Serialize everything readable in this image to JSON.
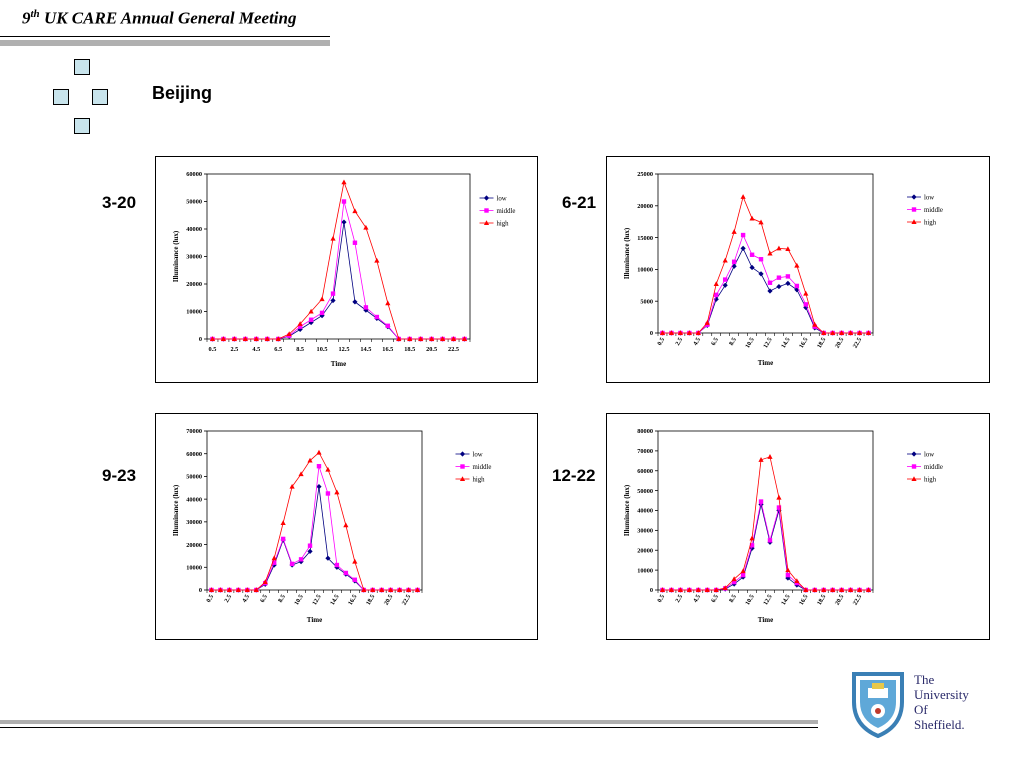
{
  "header": {
    "number": "9",
    "superscript": "th",
    "title": " UK CARE Annual General Meeting"
  },
  "page": {
    "title": "Beijing"
  },
  "logo": {
    "lines": [
      "The",
      "University",
      "Of",
      "Sheffield."
    ]
  },
  "colors": {
    "low": "#000080",
    "middle": "#ff00ff",
    "high": "#ff0000",
    "square_fill": "#c8e4ec"
  },
  "chart_data": [
    {
      "date": "3-20",
      "type": "line",
      "xlabel": "Time",
      "ylabel": "Illuminance (lux)",
      "ylim": [
        0,
        60000
      ],
      "yticks": [
        0,
        10000,
        20000,
        30000,
        40000,
        50000,
        60000
      ],
      "tick_labels": [
        "0.5",
        "2.5",
        "4.5",
        "6.5",
        "8.5",
        "10.5",
        "12.5",
        "14.5",
        "16.5",
        "18.5",
        "20.5",
        "22.5"
      ],
      "tick_rotated": false,
      "legend_position": "right",
      "x": [
        0.5,
        1.5,
        2.5,
        3.5,
        4.5,
        5.5,
        6.5,
        7.5,
        8.5,
        9.5,
        10.5,
        11.5,
        12.5,
        13.5,
        14.5,
        15.5,
        16.5,
        17.5,
        18.5,
        19.5,
        20.5,
        21.5,
        22.5,
        23.5
      ],
      "series": [
        {
          "name": "low",
          "values": [
            0,
            0,
            0,
            0,
            0,
            0,
            0,
            1000,
            3500,
            6000,
            8500,
            14000,
            42500,
            13500,
            10500,
            7500,
            4500,
            0,
            0,
            0,
            0,
            0,
            0,
            0
          ]
        },
        {
          "name": "middle",
          "values": [
            0,
            0,
            0,
            0,
            0,
            0,
            0,
            1200,
            4500,
            7000,
            9500,
            16500,
            50000,
            35000,
            11500,
            8000,
            4800,
            0,
            0,
            0,
            0,
            0,
            0,
            0
          ]
        },
        {
          "name": "high",
          "values": [
            0,
            0,
            0,
            0,
            0,
            0,
            0,
            1800,
            5500,
            10000,
            14500,
            36500,
            57000,
            46500,
            40500,
            28500,
            13000,
            0,
            0,
            0,
            0,
            0,
            0,
            0
          ]
        }
      ]
    },
    {
      "date": "6-21",
      "type": "line",
      "xlabel": "Time",
      "ylabel": "Illuminance (lux)",
      "ylim": [
        0,
        25000
      ],
      "yticks": [
        0,
        5000,
        10000,
        15000,
        20000,
        25000
      ],
      "tick_labels": [
        "0.5",
        "2.5",
        "4.5",
        "6.5",
        "8.5",
        "10.5",
        "12.5",
        "14.5",
        "16.5",
        "18.5",
        "20.5",
        "22.5"
      ],
      "tick_rotated": true,
      "legend_position": "right",
      "x": [
        0.5,
        1.5,
        2.5,
        3.5,
        4.5,
        5.5,
        6.5,
        7.5,
        8.5,
        9.5,
        10.5,
        11.5,
        12.5,
        13.5,
        14.5,
        15.5,
        16.5,
        17.5,
        18.5,
        19.5,
        20.5,
        21.5,
        22.5,
        23.5
      ],
      "series": [
        {
          "name": "low",
          "values": [
            0,
            0,
            0,
            0,
            0,
            1200,
            5300,
            7500,
            10500,
            13300,
            10300,
            9300,
            6600,
            7300,
            7800,
            6800,
            4000,
            800,
            0,
            0,
            0,
            0,
            0,
            0
          ]
        },
        {
          "name": "middle",
          "values": [
            0,
            0,
            0,
            0,
            0,
            1300,
            6000,
            8400,
            11200,
            15400,
            12300,
            11600,
            7900,
            8700,
            8900,
            7400,
            4500,
            1000,
            0,
            0,
            0,
            0,
            0,
            0
          ]
        },
        {
          "name": "high",
          "values": [
            0,
            0,
            0,
            0,
            0,
            1600,
            7700,
            11400,
            15900,
            21400,
            18000,
            17400,
            12500,
            13300,
            13200,
            10600,
            6200,
            1300,
            0,
            0,
            0,
            0,
            0,
            0
          ]
        }
      ]
    },
    {
      "date": "9-23",
      "type": "line",
      "xlabel": "Time",
      "ylabel": "Illuminance (lux)",
      "ylim": [
        0,
        70000
      ],
      "yticks": [
        0,
        10000,
        20000,
        30000,
        40000,
        50000,
        60000,
        70000
      ],
      "tick_labels": [
        "0.5",
        "2.5",
        "4.5",
        "6.5",
        "8.5",
        "10.5",
        "12.5",
        "14.5",
        "16.5",
        "18.5",
        "20.5",
        "22.5"
      ],
      "tick_rotated": true,
      "legend_position": "right",
      "x": [
        0.5,
        1.5,
        2.5,
        3.5,
        4.5,
        5.5,
        6.5,
        7.5,
        8.5,
        9.5,
        10.5,
        11.5,
        12.5,
        13.5,
        14.5,
        15.5,
        16.5,
        17.5,
        18.5,
        19.5,
        20.5,
        21.5,
        22.5,
        23.5
      ],
      "series": [
        {
          "name": "low",
          "values": [
            0,
            0,
            0,
            0,
            0,
            0,
            2500,
            11000,
            22000,
            11000,
            12500,
            17000,
            45500,
            14000,
            10000,
            7000,
            4000,
            0,
            0,
            0,
            0,
            0,
            0,
            0
          ]
        },
        {
          "name": "middle",
          "values": [
            0,
            0,
            0,
            0,
            0,
            0,
            3000,
            12000,
            22500,
            11500,
            13500,
            19500,
            54500,
            42500,
            11000,
            7500,
            4500,
            0,
            0,
            0,
            0,
            0,
            0,
            0
          ]
        },
        {
          "name": "high",
          "values": [
            0,
            0,
            0,
            0,
            0,
            0,
            3500,
            14000,
            29500,
            45500,
            51000,
            57000,
            60500,
            53000,
            43000,
            28500,
            12500,
            0,
            0,
            0,
            0,
            0,
            0,
            0
          ]
        }
      ]
    },
    {
      "date": "12-22",
      "type": "line",
      "xlabel": "Time",
      "ylabel": "Illuminance (lux)",
      "ylim": [
        0,
        80000
      ],
      "yticks": [
        0,
        10000,
        20000,
        30000,
        40000,
        50000,
        60000,
        70000,
        80000
      ],
      "tick_labels": [
        "0.5",
        "2.5",
        "4.5",
        "6.5",
        "8.5",
        "10.5",
        "12.5",
        "14.5",
        "16.5",
        "18.5",
        "20.5",
        "22.5"
      ],
      "tick_rotated": true,
      "legend_position": "right",
      "x": [
        0.5,
        1.5,
        2.5,
        3.5,
        4.5,
        5.5,
        6.5,
        7.5,
        8.5,
        9.5,
        10.5,
        11.5,
        12.5,
        13.5,
        14.5,
        15.5,
        16.5,
        17.5,
        18.5,
        19.5,
        20.5,
        21.5,
        22.5,
        23.5
      ],
      "series": [
        {
          "name": "low",
          "values": [
            0,
            0,
            0,
            0,
            0,
            0,
            0,
            500,
            3000,
            6500,
            21000,
            43000,
            24000,
            40000,
            6000,
            2500,
            0,
            0,
            0,
            0,
            0,
            0,
            0,
            0
          ]
        },
        {
          "name": "middle",
          "values": [
            0,
            0,
            0,
            0,
            0,
            0,
            0,
            800,
            4000,
            7500,
            22500,
            44500,
            25000,
            41500,
            7500,
            3500,
            0,
            0,
            0,
            0,
            0,
            0,
            0,
            0
          ]
        },
        {
          "name": "high",
          "values": [
            0,
            0,
            0,
            0,
            0,
            0,
            0,
            1000,
            5500,
            9500,
            26000,
            65500,
            67000,
            46500,
            10000,
            4500,
            0,
            0,
            0,
            0,
            0,
            0,
            0,
            0
          ]
        }
      ]
    }
  ]
}
